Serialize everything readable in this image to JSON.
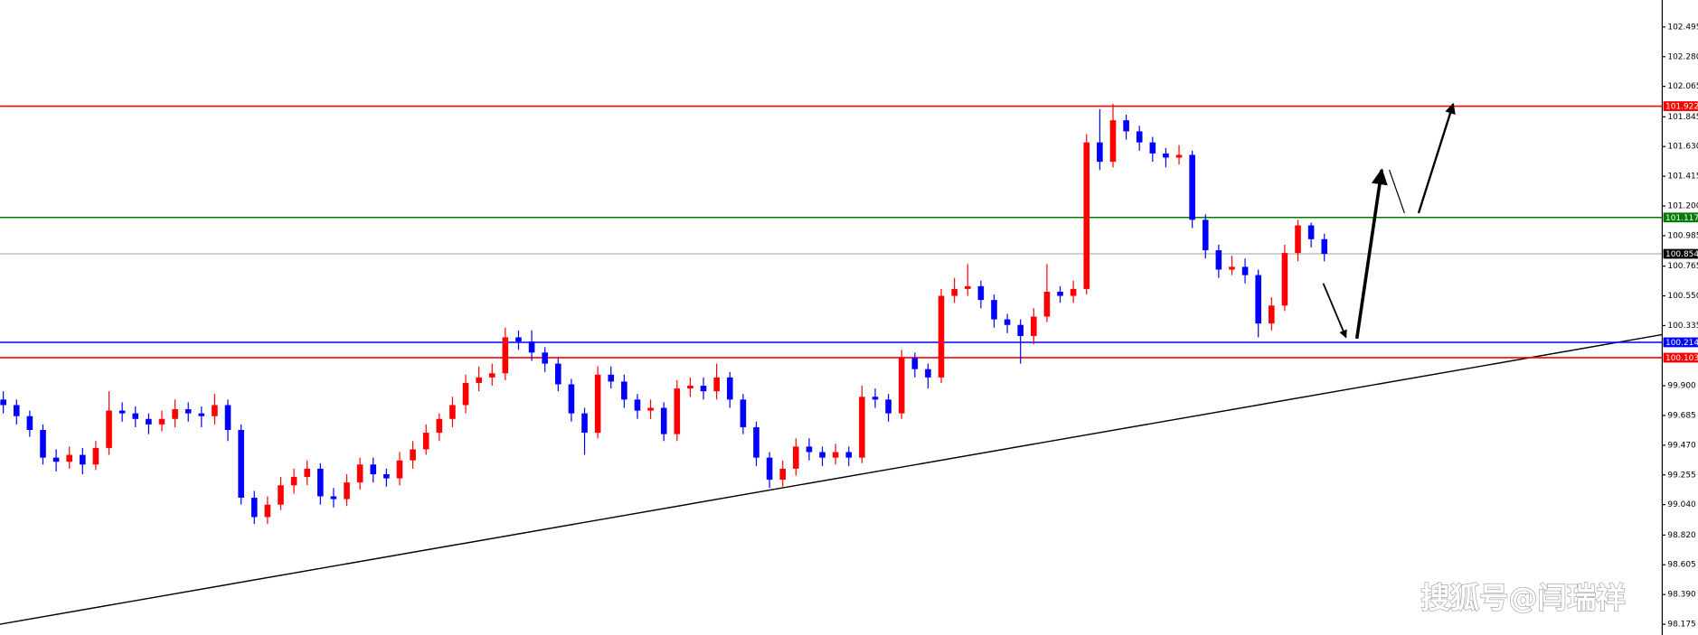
{
  "chart_data": {
    "type": "candlestick",
    "up_color": "#ff0000",
    "down_color": "#0000ff",
    "ylim": [
      98.097,
      102.69
    ],
    "yticks": [
      102.495,
      {
        "value": 102.28,
        "label": "102.280"
      },
      102.065,
      101.845,
      {
        "value": 101.63,
        "label": "101.630"
      },
      101.415,
      {
        "value": 101.2,
        "label": "101.200"
      },
      100.985,
      100.765,
      {
        "value": 100.55,
        "label": "100.550"
      },
      100.335,
      {
        "value": 99.9,
        "label": "99.900"
      },
      99.685,
      {
        "value": 99.47,
        "label": "99.470"
      },
      99.255,
      {
        "value": 99.04,
        "label": "99.040"
      },
      {
        "value": 98.82,
        "label": "98.820"
      },
      98.605,
      {
        "value": 98.39,
        "label": "98.390"
      },
      98.175
    ],
    "levels": [
      {
        "value": 101.922,
        "color": "#ff0000",
        "box_color": "#ff0000"
      },
      {
        "value": 101.117,
        "color": "#007a00",
        "box_color": "#007a00"
      },
      {
        "value": 100.854,
        "color": "#c0c0c0",
        "box_color": "#000000"
      },
      {
        "value": 100.214,
        "color": "#0000ff",
        "box_color": "#0000ff"
      },
      {
        "value": 100.103,
        "color": "#ff0000",
        "box_color": "#ff0000"
      }
    ],
    "trendline": {
      "left": 98.175,
      "right": 100.27,
      "color": "#000000"
    },
    "watermark": "搜狐号@闫瑞祥",
    "open": [
      99.8,
      99.76,
      99.68,
      99.58,
      99.38,
      99.35,
      99.4,
      99.33,
      99.45,
      99.72,
      99.7,
      99.66,
      99.62,
      99.66,
      99.73,
      99.7,
      99.68,
      99.76,
      99.58,
      99.09,
      98.95,
      99.04,
      99.18,
      99.24,
      99.3,
      99.1,
      99.08,
      99.2,
      99.33,
      99.26,
      99.23,
      99.36,
      99.44,
      99.56,
      99.66,
      99.76,
      99.92,
      99.96,
      99.99,
      100.25,
      100.22,
      100.14,
      100.06,
      99.91,
      99.7,
      99.56,
      99.98,
      99.93,
      99.8,
      99.72,
      99.74,
      99.55,
      99.88,
      99.9,
      99.86,
      99.96,
      99.8,
      99.6,
      99.38,
      99.22,
      99.3,
      99.46,
      99.42,
      99.38,
      99.42,
      99.38,
      99.82,
      99.8,
      99.7,
      100.1,
      100.02,
      99.96,
      100.55,
      100.6,
      100.62,
      100.52,
      100.38,
      100.34,
      100.26,
      100.4,
      100.58,
      100.55,
      100.6,
      101.66,
      101.52,
      101.82,
      101.74,
      101.66,
      101.58,
      101.55,
      101.57,
      101.1,
      100.88,
      100.74,
      100.76,
      100.7,
      100.35,
      100.48,
      100.86,
      101.06,
      100.96
    ],
    "high": [
      99.86,
      99.8,
      99.72,
      99.62,
      99.44,
      99.46,
      99.45,
      99.5,
      99.86,
      99.78,
      99.75,
      99.7,
      99.72,
      99.8,
      99.78,
      99.75,
      99.84,
      99.8,
      99.62,
      99.14,
      99.1,
      99.24,
      99.3,
      99.36,
      99.34,
      99.16,
      99.26,
      99.38,
      99.38,
      99.3,
      99.42,
      99.5,
      99.62,
      99.7,
      99.82,
      99.98,
      100.04,
      100.06,
      100.32,
      100.3,
      100.3,
      100.18,
      100.1,
      99.95,
      99.74,
      100.04,
      100.04,
      99.98,
      99.84,
      99.8,
      99.78,
      99.94,
      99.96,
      99.96,
      100.06,
      100.0,
      99.84,
      99.64,
      99.42,
      99.36,
      99.52,
      99.52,
      99.46,
      99.48,
      99.46,
      99.9,
      99.88,
      99.84,
      100.16,
      100.14,
      100.06,
      100.6,
      100.68,
      100.78,
      100.66,
      100.56,
      100.42,
      100.38,
      100.46,
      100.78,
      100.62,
      100.66,
      101.72,
      101.9,
      101.94,
      101.86,
      101.78,
      101.7,
      101.62,
      101.64,
      101.6,
      101.14,
      100.92,
      100.84,
      100.82,
      100.74,
      100.54,
      100.92,
      101.1,
      101.08,
      101.0
    ],
    "low": [
      99.7,
      99.62,
      99.53,
      99.33,
      99.28,
      99.3,
      99.26,
      99.29,
      99.4,
      99.64,
      99.6,
      99.55,
      99.57,
      99.6,
      99.64,
      99.6,
      99.62,
      99.5,
      99.04,
      98.9,
      98.9,
      99.0,
      99.12,
      99.18,
      99.04,
      99.02,
      99.03,
      99.15,
      99.2,
      99.17,
      99.18,
      99.3,
      99.4,
      99.5,
      99.6,
      99.7,
      99.86,
      99.9,
      99.94,
      100.16,
      100.08,
      100.0,
      99.86,
      99.64,
      99.4,
      99.52,
      99.88,
      99.74,
      99.66,
      99.66,
      99.5,
      99.5,
      99.82,
      99.8,
      99.8,
      99.74,
      99.55,
      99.32,
      99.16,
      99.17,
      99.25,
      99.36,
      99.32,
      99.33,
      99.32,
      99.34,
      99.74,
      99.64,
      99.66,
      99.96,
      99.88,
      99.92,
      100.5,
      100.55,
      100.46,
      100.32,
      100.28,
      100.06,
      100.2,
      100.36,
      100.5,
      100.5,
      100.56,
      101.46,
      101.48,
      101.68,
      101.6,
      101.52,
      101.48,
      101.5,
      101.04,
      100.82,
      100.68,
      100.7,
      100.64,
      100.25,
      100.3,
      100.44,
      100.8,
      100.9,
      100.8
    ],
    "close": [
      99.76,
      99.68,
      99.58,
      99.38,
      99.35,
      99.4,
      99.33,
      99.45,
      99.72,
      99.7,
      99.66,
      99.62,
      99.66,
      99.73,
      99.7,
      99.68,
      99.76,
      99.58,
      99.09,
      98.95,
      99.04,
      99.18,
      99.24,
      99.3,
      99.1,
      99.08,
      99.2,
      99.33,
      99.26,
      99.23,
      99.36,
      99.44,
      99.56,
      99.66,
      99.76,
      99.92,
      99.96,
      99.99,
      100.25,
      100.22,
      100.14,
      100.06,
      99.91,
      99.7,
      99.56,
      99.98,
      99.93,
      99.8,
      99.72,
      99.74,
      99.55,
      99.88,
      99.9,
      99.86,
      99.96,
      99.8,
      99.6,
      99.38,
      99.22,
      99.3,
      99.46,
      99.42,
      99.38,
      99.42,
      99.38,
      99.82,
      99.8,
      99.7,
      100.1,
      100.02,
      99.96,
      100.55,
      100.6,
      100.62,
      100.52,
      100.38,
      100.34,
      100.26,
      100.4,
      100.58,
      100.55,
      100.6,
      101.66,
      101.52,
      101.82,
      101.74,
      101.66,
      101.58,
      101.55,
      101.57,
      101.1,
      100.88,
      100.74,
      100.76,
      100.7,
      100.35,
      100.48,
      100.86,
      101.06,
      100.96,
      100.854
    ]
  }
}
